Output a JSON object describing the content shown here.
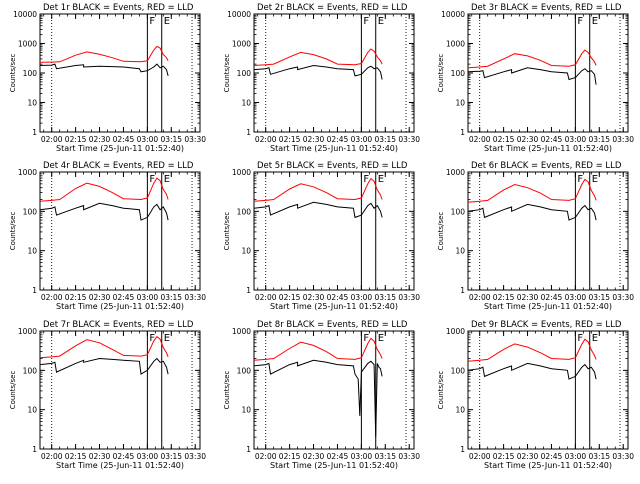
{
  "figure": {
    "xlabel": "Start Time (25-Jun-11 01:52:40)",
    "ylabel": "Counts/sec",
    "x_ticks": [
      "02:00",
      "02:15",
      "02:30",
      "02:45",
      "03:00",
      "03:15",
      "03:30"
    ],
    "y_ticks": [
      "1",
      "10",
      "100",
      "1000",
      "10000"
    ],
    "ylim": [
      1,
      10000
    ],
    "y_scale": "log",
    "xlim": [
      "01:52:40",
      "03:33:00"
    ],
    "colors": {
      "events": "#000000",
      "lld": "#ff0000",
      "axes": "#000000"
    }
  },
  "chart_data": [
    {
      "type": "line",
      "title": "Det 1r BLACK = Events, RED = LLD",
      "ylim": [
        1,
        10000
      ],
      "markers": [
        {
          "time": "02:00",
          "style": "dotted"
        },
        {
          "time": "03:00",
          "style": "solid",
          "label": "F"
        },
        {
          "time": "03:09",
          "style": "solid",
          "label": "E"
        },
        {
          "time": "03:28",
          "style": "dotted"
        }
      ],
      "series": [
        {
          "name": "Events",
          "color": "#000000",
          "x": [
            "01:52:40",
            "02:00",
            "02:02",
            "02:03",
            "02:15",
            "02:20",
            "02:20",
            "02:30",
            "02:38",
            "02:45",
            "02:55",
            "02:56",
            "03:00",
            "03:04",
            "03:06",
            "03:08",
            "03:10",
            "03:12",
            "03:13"
          ],
          "y": [
            180,
            185,
            200,
            140,
            180,
            190,
            160,
            170,
            165,
            160,
            140,
            110,
            120,
            160,
            200,
            150,
            170,
            130,
            80
          ]
        },
        {
          "name": "LLD",
          "color": "#ff0000",
          "x": [
            "01:52:40",
            "02:00",
            "02:05",
            "02:15",
            "02:22",
            "02:30",
            "02:38",
            "02:45",
            "02:56",
            "03:00",
            "03:04",
            "03:06",
            "03:08",
            "03:10",
            "03:12",
            "03:13"
          ],
          "y": [
            230,
            235,
            240,
            400,
            520,
            430,
            330,
            250,
            240,
            260,
            600,
            800,
            700,
            420,
            330,
            260
          ]
        }
      ]
    },
    {
      "type": "line",
      "title": "Det 2r BLACK = Events, RED = LLD",
      "ylim": [
        1,
        10000
      ],
      "markers": [
        {
          "time": "02:00",
          "style": "dotted"
        },
        {
          "time": "03:00",
          "style": "solid",
          "label": "F"
        },
        {
          "time": "03:09",
          "style": "solid",
          "label": "E"
        },
        {
          "time": "03:28",
          "style": "dotted"
        }
      ],
      "series": [
        {
          "name": "Events",
          "color": "#000000",
          "x": [
            "01:52:40",
            "02:00",
            "02:02",
            "02:03",
            "02:15",
            "02:20",
            "02:20",
            "02:30",
            "02:38",
            "02:45",
            "02:55",
            "02:56",
            "03:00",
            "03:04",
            "03:06",
            "03:08",
            "03:10",
            "03:12",
            "03:13"
          ],
          "y": [
            130,
            140,
            150,
            90,
            140,
            160,
            130,
            180,
            160,
            140,
            130,
            80,
            90,
            150,
            170,
            140,
            150,
            110,
            60
          ]
        },
        {
          "name": "LLD",
          "color": "#ff0000",
          "x": [
            "01:52:40",
            "02:00",
            "02:05",
            "02:15",
            "02:22",
            "02:30",
            "02:38",
            "02:45",
            "02:56",
            "03:00",
            "03:04",
            "03:06",
            "03:08",
            "03:10",
            "03:12",
            "03:13"
          ],
          "y": [
            180,
            190,
            200,
            350,
            500,
            420,
            300,
            200,
            190,
            210,
            500,
            650,
            550,
            350,
            260,
            200
          ]
        }
      ]
    },
    {
      "type": "line",
      "title": "Det 3r BLACK = Events, RED = LLD",
      "ylim": [
        1,
        10000
      ],
      "markers": [
        {
          "time": "02:00",
          "style": "dotted"
        },
        {
          "time": "03:00",
          "style": "solid",
          "label": "F"
        },
        {
          "time": "03:09",
          "style": "solid",
          "label": "E"
        },
        {
          "time": "03:28",
          "style": "dotted"
        }
      ],
      "series": [
        {
          "name": "Events",
          "color": "#000000",
          "x": [
            "01:52:40",
            "02:00",
            "02:02",
            "02:03",
            "02:15",
            "02:20",
            "02:20",
            "02:30",
            "02:38",
            "02:45",
            "02:55",
            "02:56",
            "03:00",
            "03:04",
            "03:06",
            "03:08",
            "03:10",
            "03:12",
            "03:13"
          ],
          "y": [
            110,
            115,
            120,
            70,
            110,
            130,
            100,
            150,
            130,
            110,
            100,
            60,
            70,
            120,
            140,
            110,
            120,
            90,
            40
          ]
        },
        {
          "name": "LLD",
          "color": "#ff0000",
          "x": [
            "01:52:40",
            "02:00",
            "02:05",
            "02:15",
            "02:22",
            "02:30",
            "02:38",
            "02:45",
            "02:56",
            "03:00",
            "03:04",
            "03:06",
            "03:08",
            "03:10",
            "03:12",
            "03:13"
          ],
          "y": [
            150,
            160,
            170,
            300,
            450,
            380,
            270,
            180,
            170,
            190,
            450,
            600,
            500,
            330,
            240,
            180
          ]
        }
      ]
    },
    {
      "type": "line",
      "title": "Det 4r BLACK = Events, RED = LLD",
      "ylim": [
        1,
        1000
      ],
      "markers": [
        {
          "time": "02:00",
          "style": "dotted"
        },
        {
          "time": "03:00",
          "style": "solid",
          "label": "F"
        },
        {
          "time": "03:09",
          "style": "solid",
          "label": "E"
        },
        {
          "time": "03:28",
          "style": "dotted"
        }
      ],
      "series": [
        {
          "name": "Events",
          "color": "#000000",
          "x": [
            "01:52:40",
            "02:00",
            "02:02",
            "02:03",
            "02:15",
            "02:20",
            "02:20",
            "02:30",
            "02:38",
            "02:45",
            "02:55",
            "02:56",
            "03:00",
            "03:04",
            "03:06",
            "03:08",
            "03:10",
            "03:12",
            "03:13"
          ],
          "y": [
            110,
            120,
            130,
            80,
            120,
            140,
            110,
            160,
            140,
            120,
            110,
            60,
            70,
            130,
            150,
            110,
            130,
            90,
            60
          ]
        },
        {
          "name": "LLD",
          "color": "#ff0000",
          "x": [
            "01:52:40",
            "02:00",
            "02:05",
            "02:15",
            "02:22",
            "02:30",
            "02:38",
            "02:45",
            "02:56",
            "03:00",
            "03:04",
            "03:06",
            "03:08",
            "03:10",
            "03:12",
            "03:13"
          ],
          "y": [
            180,
            190,
            200,
            380,
            520,
            430,
            300,
            210,
            200,
            220,
            520,
            700,
            600,
            360,
            270,
            200
          ]
        }
      ]
    },
    {
      "type": "line",
      "title": "Det 5r BLACK = Events, RED = LLD",
      "ylim": [
        1,
        1000
      ],
      "markers": [
        {
          "time": "02:00",
          "style": "dotted"
        },
        {
          "time": "03:00",
          "style": "solid",
          "label": "F"
        },
        {
          "time": "03:09",
          "style": "solid",
          "label": "E"
        },
        {
          "time": "03:28",
          "style": "dotted"
        }
      ],
      "series": [
        {
          "name": "Events",
          "color": "#000000",
          "x": [
            "01:52:40",
            "02:00",
            "02:02",
            "02:03",
            "02:15",
            "02:20",
            "02:20",
            "02:30",
            "02:38",
            "02:45",
            "02:55",
            "02:56",
            "03:00",
            "03:04",
            "03:06",
            "03:08",
            "03:10",
            "03:12",
            "03:13"
          ],
          "y": [
            120,
            130,
            140,
            80,
            130,
            150,
            120,
            170,
            150,
            130,
            120,
            70,
            80,
            140,
            160,
            120,
            140,
            100,
            70
          ]
        },
        {
          "name": "LLD",
          "color": "#ff0000",
          "x": [
            "01:52:40",
            "02:00",
            "02:05",
            "02:15",
            "02:22",
            "02:30",
            "02:38",
            "02:45",
            "02:56",
            "03:00",
            "03:04",
            "03:06",
            "03:08",
            "03:10",
            "03:12",
            "03:13"
          ],
          "y": [
            180,
            190,
            200,
            370,
            500,
            420,
            300,
            210,
            200,
            220,
            500,
            680,
            580,
            350,
            260,
            200
          ]
        }
      ]
    },
    {
      "type": "line",
      "title": "Det 6r BLACK = Events, RED = LLD",
      "ylim": [
        1,
        1000
      ],
      "markers": [
        {
          "time": "02:00",
          "style": "dotted"
        },
        {
          "time": "03:00",
          "style": "solid",
          "label": "F"
        },
        {
          "time": "03:09",
          "style": "solid",
          "label": "E"
        },
        {
          "time": "03:28",
          "style": "dotted"
        }
      ],
      "series": [
        {
          "name": "Events",
          "color": "#000000",
          "x": [
            "01:52:40",
            "02:00",
            "02:02",
            "02:03",
            "02:15",
            "02:20",
            "02:20",
            "02:30",
            "02:38",
            "02:45",
            "02:55",
            "02:56",
            "03:00",
            "03:04",
            "03:06",
            "03:08",
            "03:10",
            "03:12",
            "03:13"
          ],
          "y": [
            100,
            110,
            120,
            70,
            110,
            130,
            100,
            150,
            130,
            110,
            100,
            60,
            70,
            120,
            140,
            110,
            120,
            90,
            60
          ]
        },
        {
          "name": "LLD",
          "color": "#ff0000",
          "x": [
            "01:52:40",
            "02:00",
            "02:05",
            "02:15",
            "02:22",
            "02:30",
            "02:38",
            "02:45",
            "02:56",
            "03:00",
            "03:04",
            "03:06",
            "03:08",
            "03:10",
            "03:12",
            "03:13"
          ],
          "y": [
            170,
            180,
            190,
            350,
            480,
            400,
            290,
            200,
            190,
            210,
            480,
            650,
            560,
            340,
            250,
            190
          ]
        }
      ]
    },
    {
      "type": "line",
      "title": "Det 7r BLACK = Events, RED = LLD",
      "ylim": [
        1,
        1000
      ],
      "markers": [
        {
          "time": "02:00",
          "style": "dotted"
        },
        {
          "time": "03:00",
          "style": "solid",
          "label": "F"
        },
        {
          "time": "03:09",
          "style": "solid",
          "label": "E"
        },
        {
          "time": "03:28",
          "style": "dotted"
        }
      ],
      "series": [
        {
          "name": "Events",
          "color": "#000000",
          "x": [
            "01:52:40",
            "02:00",
            "02:02",
            "02:03",
            "02:15",
            "02:20",
            "02:20",
            "02:30",
            "02:38",
            "02:45",
            "02:55",
            "02:56",
            "03:00",
            "03:04",
            "03:06",
            "03:08",
            "03:10",
            "03:12",
            "03:13"
          ],
          "y": [
            140,
            150,
            160,
            90,
            150,
            180,
            160,
            200,
            190,
            180,
            170,
            80,
            100,
            170,
            200,
            160,
            170,
            120,
            80
          ]
        },
        {
          "name": "LLD",
          "color": "#ff0000",
          "x": [
            "01:52:40",
            "02:00",
            "02:05",
            "02:15",
            "02:22",
            "02:30",
            "02:38",
            "02:45",
            "02:56",
            "03:00",
            "03:04",
            "03:06",
            "03:08",
            "03:10",
            "03:12",
            "03:13"
          ],
          "y": [
            210,
            220,
            230,
            420,
            600,
            500,
            340,
            240,
            230,
            250,
            560,
            720,
            620,
            380,
            280,
            220
          ]
        }
      ]
    },
    {
      "type": "line",
      "title": "Det 8r BLACK = Events, RED = LLD",
      "ylim": [
        1,
        1000
      ],
      "markers": [
        {
          "time": "02:00",
          "style": "dotted"
        },
        {
          "time": "03:00",
          "style": "solid",
          "label": "F"
        },
        {
          "time": "03:09",
          "style": "solid",
          "label": "E"
        },
        {
          "time": "03:28",
          "style": "dotted"
        }
      ],
      "series": [
        {
          "name": "Events",
          "color": "#000000",
          "x": [
            "01:52:40",
            "02:00",
            "02:02",
            "02:03",
            "02:15",
            "02:20",
            "02:20",
            "02:30",
            "02:38",
            "02:45",
            "02:55",
            "02:56",
            "02:58",
            "02:59",
            "03:00",
            "03:04",
            "03:06",
            "03:08",
            "03:09",
            "03:10",
            "03:11",
            "03:12",
            "03:13"
          ],
          "y": [
            130,
            140,
            150,
            80,
            140,
            160,
            130,
            180,
            160,
            140,
            130,
            80,
            60,
            7,
            90,
            150,
            170,
            140,
            2,
            150,
            120,
            110,
            70
          ]
        },
        {
          "name": "LLD",
          "color": "#ff0000",
          "x": [
            "01:52:40",
            "02:00",
            "02:05",
            "02:15",
            "02:22",
            "02:30",
            "02:38",
            "02:45",
            "02:56",
            "03:00",
            "03:04",
            "03:06",
            "03:08",
            "03:10",
            "03:12",
            "03:13"
          ],
          "y": [
            180,
            190,
            200,
            360,
            520,
            430,
            300,
            200,
            190,
            210,
            480,
            650,
            550,
            340,
            250,
            200
          ]
        }
      ]
    },
    {
      "type": "line",
      "title": "Det 9r BLACK = Events, RED = LLD",
      "ylim": [
        1,
        1000
      ],
      "markers": [
        {
          "time": "02:00",
          "style": "dotted"
        },
        {
          "time": "03:00",
          "style": "solid",
          "label": "F"
        },
        {
          "time": "03:09",
          "style": "solid",
          "label": "E"
        },
        {
          "time": "03:28",
          "style": "dotted"
        }
      ],
      "series": [
        {
          "name": "Events",
          "color": "#000000",
          "x": [
            "01:52:40",
            "02:00",
            "02:02",
            "02:03",
            "02:15",
            "02:20",
            "02:20",
            "02:30",
            "02:38",
            "02:45",
            "02:55",
            "02:56",
            "03:00",
            "03:04",
            "03:06",
            "03:08",
            "03:10",
            "03:12",
            "03:13"
          ],
          "y": [
            100,
            110,
            120,
            70,
            110,
            130,
            100,
            150,
            130,
            110,
            100,
            60,
            70,
            120,
            140,
            110,
            120,
            90,
            60
          ]
        },
        {
          "name": "LLD",
          "color": "#ff0000",
          "x": [
            "01:52:40",
            "02:00",
            "02:05",
            "02:15",
            "02:22",
            "02:30",
            "02:38",
            "02:45",
            "02:56",
            "03:00",
            "03:04",
            "03:06",
            "03:08",
            "03:10",
            "03:12",
            "03:13"
          ],
          "y": [
            170,
            180,
            190,
            340,
            470,
            390,
            280,
            200,
            190,
            210,
            460,
            620,
            530,
            330,
            240,
            190
          ]
        }
      ]
    }
  ]
}
